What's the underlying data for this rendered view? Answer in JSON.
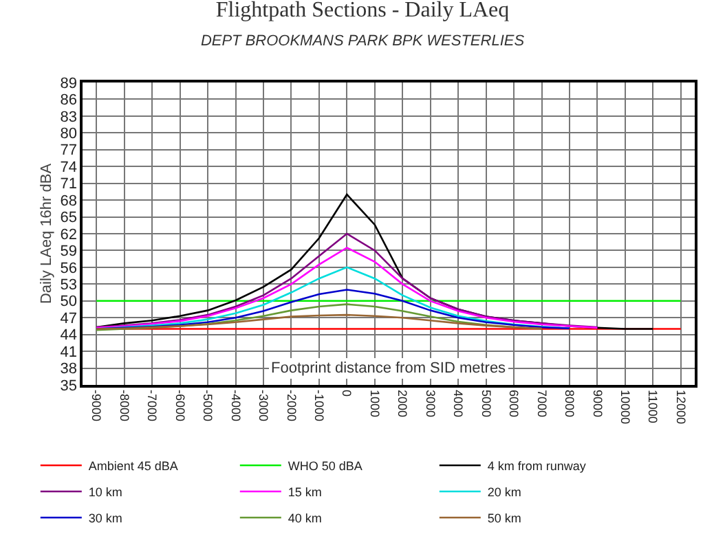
{
  "chart_data": {
    "type": "line",
    "title": "Flightpath Sections - Daily LAeq",
    "subtitle": "DEPT BROOKMANS PARK BPK WESTERLIES",
    "xlabel": "Footprint distance from SID metres",
    "ylabel": "Daily LAeq 16hr dBA",
    "categories": [
      "-9000",
      "-8000",
      "-7000",
      "-6000",
      "-5000",
      "-4000",
      "-3000",
      "-2000",
      "-1000",
      "0",
      "1000",
      "2000",
      "3000",
      "4000",
      "5000",
      "6000",
      "7000",
      "8000",
      "9000",
      "10000",
      "11000",
      "12000"
    ],
    "ylim": [
      35,
      89
    ],
    "yticks": [
      35,
      38,
      41,
      44,
      47,
      50,
      53,
      56,
      59,
      62,
      65,
      68,
      71,
      74,
      77,
      80,
      83,
      86,
      89
    ],
    "grid": true,
    "legend": "bottom",
    "marker": "none",
    "series": [
      {
        "name": "Ambient 45 dBA",
        "color": "#ff0000",
        "values": [
          45,
          45,
          45,
          45,
          45,
          45,
          45,
          45,
          45,
          45,
          45,
          45,
          45,
          45,
          45,
          45,
          45,
          45,
          45,
          45,
          45,
          45
        ]
      },
      {
        "name": "WHO 50 dBA",
        "color": "#00ee00",
        "values": [
          50,
          50,
          50,
          50,
          50,
          50,
          50,
          50,
          50,
          50,
          50,
          50,
          50,
          50,
          50,
          50,
          50,
          50,
          50,
          50,
          50,
          50
        ]
      },
      {
        "name": "4 km from runway",
        "color": "#000000",
        "values": [
          45.3,
          46,
          46.5,
          47.3,
          48.3,
          50.1,
          52.5,
          55.6,
          61.2,
          69,
          63.6,
          54,
          50.5,
          48.5,
          47.2,
          46.5,
          46,
          45.5,
          45.2,
          45,
          45,
          null
        ]
      },
      {
        "name": "10 km",
        "color": "#800080",
        "values": [
          45.3,
          45.6,
          46,
          46.6,
          47.5,
          49,
          51,
          54,
          58,
          62,
          59,
          54,
          50.5,
          48.5,
          47.2,
          46.5,
          46,
          45.6,
          45.3,
          null,
          null,
          null
        ]
      },
      {
        "name": "15 km",
        "color": "#ff00ff",
        "values": [
          45.2,
          45.5,
          45.9,
          46.4,
          47.3,
          48.7,
          50.5,
          53,
          56.5,
          59.5,
          57,
          53,
          50,
          48.2,
          47,
          46.3,
          45.8,
          45.5,
          45.2,
          null,
          null,
          null
        ]
      },
      {
        "name": "20 km",
        "color": "#00dddd",
        "values": [
          45,
          45.3,
          45.6,
          46,
          46.7,
          47.8,
          49.3,
          51.5,
          54,
          56,
          54,
          51,
          48.8,
          47.3,
          46.4,
          45.8,
          45.4,
          45.1,
          null,
          null,
          null,
          null
        ]
      },
      {
        "name": "30 km",
        "color": "#0000cc",
        "values": [
          45,
          45.2,
          45.4,
          45.7,
          46.2,
          47,
          48.2,
          49.8,
          51.2,
          52,
          51.3,
          50,
          48.3,
          47,
          46.2,
          45.7,
          45.3,
          45.1,
          null,
          null,
          null,
          null
        ]
      },
      {
        "name": "40 km",
        "color": "#669933",
        "values": [
          44.8,
          45,
          45.2,
          45.5,
          45.9,
          46.5,
          47.3,
          48.3,
          49,
          49.4,
          49,
          48.2,
          47.2,
          46.3,
          45.7,
          45.3,
          45,
          null,
          null,
          null,
          null,
          null
        ]
      },
      {
        "name": "50 km",
        "color": "#996633",
        "values": [
          45,
          45.1,
          45.3,
          45.5,
          45.8,
          46.2,
          46.7,
          47.2,
          47.4,
          47.5,
          47.3,
          47,
          46.5,
          46,
          45.6,
          45.3,
          45.1,
          null,
          null,
          null,
          null,
          null
        ]
      }
    ]
  }
}
